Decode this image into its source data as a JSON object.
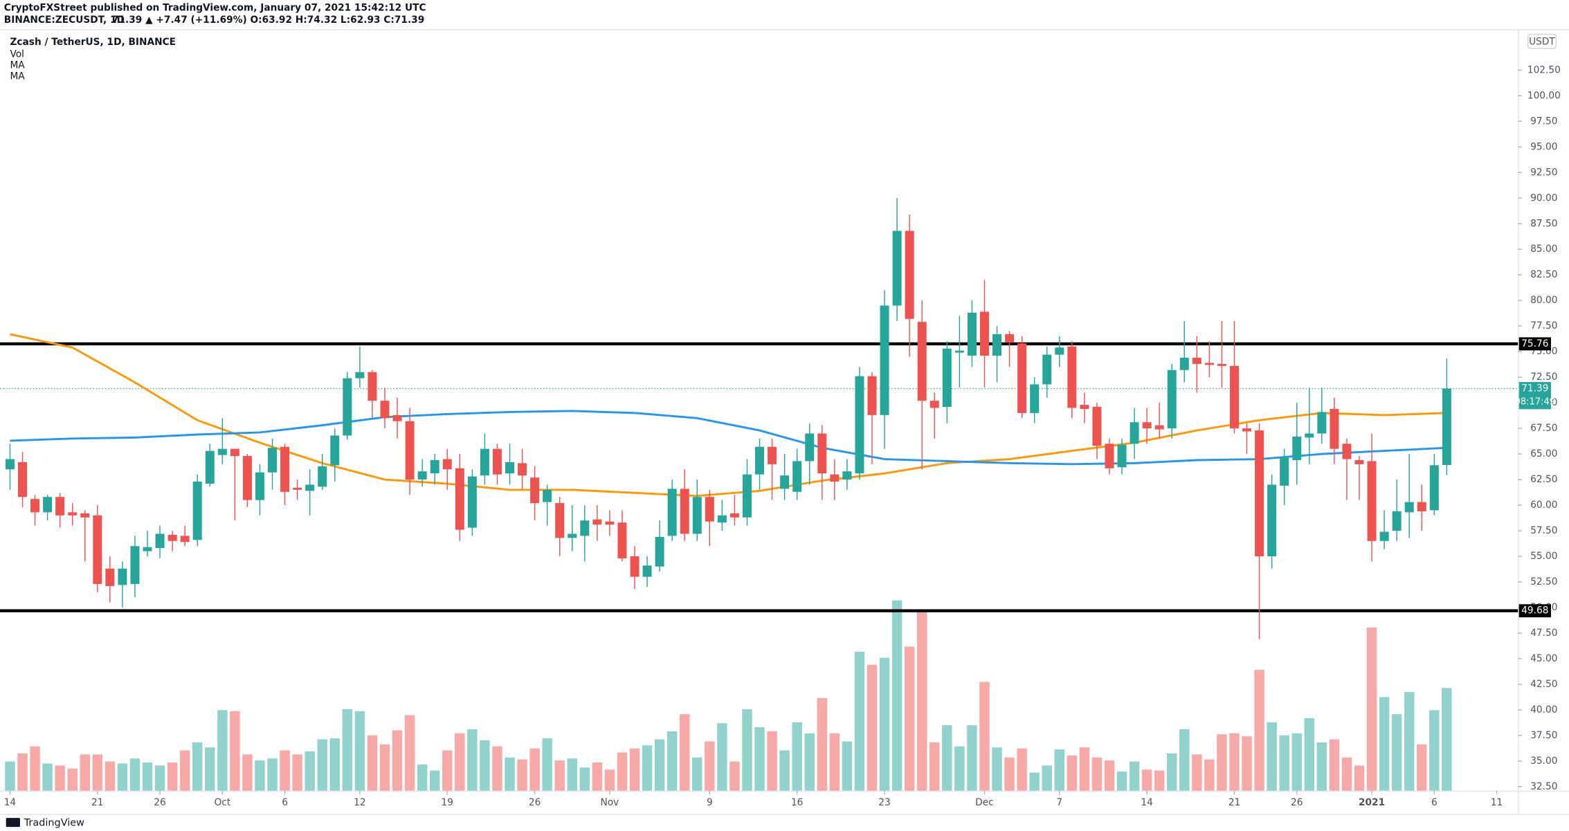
{
  "header": {
    "publisher": "CryptoFXStreet published on TradingView.com, January 07, 2021 15:42:12 UTC",
    "symbol": "BINANCE:ZECUSDT, 1D",
    "quote": "71.39 ▲ +7.47 (+11.69%) O:63.92 H:74.32 L:62.93 C:71.39"
  },
  "chart_data": {
    "type": "candlestick",
    "title": "Zcash / TetherUS, 1D, BINANCE",
    "y_unit": "USDT",
    "colors": {
      "up": "#26a69a",
      "down": "#ef5350"
    },
    "open": [
      63.5,
      64.2,
      60.6,
      59.3,
      60.8,
      59.3,
      59.2,
      59,
      53.8,
      52.2,
      52.3,
      55.5,
      55.8,
      57.1,
      57,
      56.6,
      62.1,
      64.9,
      65.5,
      64.8,
      60.5,
      63.2,
      65.7,
      61.7,
      61.4,
      61.8,
      63.9,
      66.8,
      72.4,
      73.0,
      70.2,
      68.8,
      68.2,
      62.5,
      63.1,
      64.5,
      63.6,
      57.8,
      62.9,
      65.5,
      63.1,
      64.1,
      62.7,
      60.3,
      60.2,
      56.8,
      57.0,
      58.6,
      58.4,
      58.3,
      55.0,
      53.0,
      54.0,
      57.0,
      61.6,
      57.2,
      60.8,
      58.3,
      59.2,
      58.8,
      63.0,
      65.7,
      61.6,
      61.3,
      64.3,
      67.0,
      63.0,
      62.5,
      63.1,
      72.6,
      68.8,
      79.5,
      86.8,
      77.9,
      70.2,
      69.6,
      74.9,
      74.6,
      78.9,
      74.6,
      76.7,
      75.8,
      69.0,
      71.8,
      74.7,
      75.5,
      69.8,
      69.6,
      66.0,
      63.7,
      66.0,
      68.1,
      67.8,
      67.5,
      73.2,
      74.4,
      73.9,
      73.8,
      73.6,
      67.5,
      67.3,
      55.0,
      61.9,
      64.4,
      66.6,
      67.0,
      69.4,
      66.0,
      64.4,
      64.3,
      56.5,
      57.5,
      59.3,
      60.3,
      59.5,
      63.92
    ],
    "high": [
      66,
      65.2,
      61,
      61,
      61.2,
      60.2,
      59.5,
      60,
      55,
      54.5,
      57,
      57.5,
      58,
      57.5,
      58,
      63,
      66,
      68.5,
      65.5,
      65,
      64,
      66.5,
      66,
      62.5,
      63.5,
      65,
      67.5,
      73,
      75.5,
      73.2,
      71.5,
      70.5,
      69.5,
      64.5,
      65,
      65.5,
      65,
      63.5,
      67,
      66,
      66,
      65.5,
      63.8,
      62,
      60.8,
      60,
      60,
      60,
      59.5,
      59.5,
      56,
      55,
      58.5,
      62.5,
      63.5,
      62.5,
      61.5,
      60.5,
      61,
      64.5,
      66.5,
      66.5,
      65,
      65.5,
      68,
      67.8,
      64.5,
      64.5,
      73.5,
      73,
      81,
      90,
      88.4,
      80,
      71,
      76,
      78.5,
      80,
      82,
      77.5,
      77,
      76.5,
      72.5,
      75.5,
      76.5,
      76,
      71,
      70,
      66.5,
      66.5,
      69.5,
      69.5,
      70,
      73.8,
      78,
      76.5,
      76,
      78,
      78,
      68,
      68,
      63,
      65.5,
      70,
      71.5,
      71.5,
      70.5,
      66.5,
      64.8,
      67,
      59.5,
      62.5,
      65,
      62,
      65,
      74.32
    ],
    "low": [
      61.5,
      59.8,
      58,
      58.5,
      57.8,
      58,
      54.5,
      51.5,
      50.5,
      50,
      51,
      55,
      54.8,
      55.5,
      56,
      56,
      61.8,
      64,
      58.5,
      59.8,
      59,
      61.5,
      60,
      60.5,
      59,
      61.5,
      62.3,
      66.4,
      71.5,
      68.5,
      67.5,
      66.5,
      61,
      61.8,
      62,
      61.5,
      56.5,
      57,
      62,
      62,
      62,
      61.5,
      58.5,
      58,
      55,
      55.5,
      54.5,
      56.5,
      57,
      54.5,
      51.8,
      52,
      53.5,
      56.5,
      56.5,
      56.5,
      56,
      57.5,
      58,
      58,
      61.5,
      60.5,
      60.5,
      60.5,
      62,
      60.5,
      60.5,
      61.5,
      62.5,
      64,
      65.5,
      78,
      74.5,
      63.5,
      66.5,
      68,
      71.5,
      73.5,
      71.5,
      72,
      73.5,
      68.5,
      68,
      70.5,
      73.5,
      68.5,
      68,
      64.5,
      63,
      63,
      64.5,
      66,
      66.5,
      66.5,
      72,
      71,
      72.5,
      71.5,
      67,
      65,
      46.9,
      53.8,
      60,
      62,
      64,
      66,
      64,
      60.5,
      60.5,
      54.5,
      55.7,
      56.5,
      56.8,
      57.5,
      59,
      62.93
    ],
    "close": [
      64.5,
      60.8,
      59.3,
      60.8,
      59.0,
      59.0,
      58.8,
      52.3,
      52.1,
      53.8,
      56.0,
      55.9,
      57.2,
      56.5,
      56.4,
      62.3,
      65.3,
      65.5,
      64.8,
      60.5,
      63.2,
      65.6,
      61.3,
      61.5,
      62.0,
      63.8,
      66.8,
      72.4,
      73.0,
      70.2,
      68.5,
      68.2,
      62.5,
      63.3,
      64.4,
      63.5,
      57.6,
      62.8,
      65.5,
      63.0,
      64.2,
      62.9,
      60.2,
      61.5,
      56.8,
      57.2,
      58.5,
      58.1,
      58.1,
      54.8,
      53.0,
      54.1,
      56.9,
      61.6,
      57.2,
      60.8,
      58.4,
      59.0,
      58.8,
      63.0,
      65.7,
      64.0,
      62.9,
      64.3,
      67.0,
      63.1,
      62.3,
      63.3,
      72.6,
      68.8,
      79.5,
      86.8,
      78.2,
      70.2,
      69.5,
      75.3,
      75.1,
      78.8,
      74.6,
      76.7,
      75.9,
      69.0,
      71.8,
      74.7,
      75.4,
      69.5,
      69.4,
      65.8,
      63.6,
      65.9,
      68.1,
      67.5,
      67.4,
      73.2,
      74.4,
      73.8,
      73.7,
      73.6,
      67.5,
      67.2,
      55.0,
      62.0,
      64.7,
      66.7,
      67.0,
      69.1,
      65.5,
      64.5,
      64.0,
      56.5,
      57.4,
      59.4,
      60.3,
      59.4,
      63.9,
      71.39
    ],
    "volume": {
      "name": "Vol",
      "vlim": [
        0,
        200
      ],
      "values": [
        29,
        37,
        44,
        27,
        25,
        22,
        36,
        36,
        29,
        27,
        32,
        28,
        25,
        28,
        40,
        48,
        43,
        80,
        79,
        36,
        30,
        32,
        40,
        36,
        39,
        51,
        52,
        81,
        79,
        55,
        46,
        60,
        75,
        26,
        20,
        40,
        57,
        61,
        50,
        44,
        33,
        31,
        42,
        52,
        30,
        32,
        23,
        28,
        21,
        38,
        42,
        45,
        51,
        59,
        76,
        33,
        49,
        67,
        29,
        81,
        63,
        59,
        40,
        68,
        57,
        92,
        57,
        49,
        138,
        125,
        132,
        189,
        143,
        178,
        48,
        65,
        44,
        65,
        108,
        43,
        33,
        42,
        18,
        25,
        41,
        35,
        43,
        33,
        30,
        19,
        29,
        21,
        20,
        37,
        61,
        36,
        31,
        56,
        57,
        54,
        120,
        68,
        55,
        57,
        72,
        48,
        51,
        33,
        25,
        162,
        93,
        76,
        98,
        46,
        80,
        102
      ]
    },
    "moving_averages": [
      {
        "name": "MA",
        "color": "#ff9800",
        "x": [
          0,
          5,
          10,
          15,
          20,
          25,
          30,
          35,
          40,
          45,
          50,
          55,
          60,
          65,
          70,
          75,
          80,
          85,
          90,
          95,
          100,
          105,
          110,
          115
        ],
        "values": [
          76.7,
          75.4,
          72.0,
          68.3,
          66.1,
          64.1,
          62.5,
          62.1,
          61.5,
          61.5,
          61.2,
          60.9,
          61.4,
          62.4,
          63.1,
          64.1,
          64.5,
          65.3,
          66.1,
          67.3,
          68.3,
          69.0,
          68.8,
          69.0
        ]
      },
      {
        "name": "MA",
        "color": "#2196f3",
        "x": [
          0,
          5,
          10,
          15,
          20,
          25,
          30,
          35,
          40,
          45,
          50,
          55,
          60,
          65,
          70,
          75,
          80,
          85,
          90,
          95,
          100,
          105,
          110,
          115
        ],
        "values": [
          66.3,
          66.5,
          66.6,
          66.9,
          67.1,
          67.8,
          68.6,
          68.9,
          69.1,
          69.2,
          69.0,
          68.5,
          67.3,
          65.6,
          64.5,
          64.3,
          64.1,
          64.0,
          64.1,
          64.4,
          64.5,
          65.0,
          65.3,
          65.6
        ]
      }
    ],
    "levels": [
      75.76,
      49.68
    ],
    "countdown": "08:17:49",
    "xlim": [
      -0.8,
      120.7
    ],
    "ylim": [
      32.1,
      106.4
    ],
    "xticks": [
      {
        "value": 0,
        "label": "14"
      },
      {
        "value": 7,
        "label": "21"
      },
      {
        "value": 12,
        "label": "26"
      },
      {
        "value": 17,
        "label": "Oct"
      },
      {
        "value": 22,
        "label": "6"
      },
      {
        "value": 28,
        "label": "12"
      },
      {
        "value": 35,
        "label": "19"
      },
      {
        "value": 42,
        "label": "26"
      },
      {
        "value": 48,
        "label": "Nov"
      },
      {
        "value": 56,
        "label": "9"
      },
      {
        "value": 63,
        "label": "16"
      },
      {
        "value": 70,
        "label": "23"
      },
      {
        "value": 78,
        "label": "Dec"
      },
      {
        "value": 84,
        "label": "7"
      },
      {
        "value": 91,
        "label": "14"
      },
      {
        "value": 98,
        "label": "21"
      },
      {
        "value": 103,
        "label": "26"
      },
      {
        "value": 109,
        "label": "2021"
      },
      {
        "value": 114,
        "label": "6"
      },
      {
        "value": 119,
        "label": "11"
      }
    ],
    "yticks": [
      {
        "value": 32.5,
        "label": "32.50"
      },
      {
        "value": 35,
        "label": "35.00"
      },
      {
        "value": 37.5,
        "label": "37.50"
      },
      {
        "value": 40,
        "label": "40.00"
      },
      {
        "value": 42.5,
        "label": "42.50"
      },
      {
        "value": 45,
        "label": "45.00"
      },
      {
        "value": 47.5,
        "label": "47.50"
      },
      {
        "value": 50,
        "label": "50.00"
      },
      {
        "value": 52.5,
        "label": "52.50"
      },
      {
        "value": 55,
        "label": "55.00"
      },
      {
        "value": 57.5,
        "label": "57.50"
      },
      {
        "value": 60,
        "label": "60.00"
      },
      {
        "value": 62.5,
        "label": "62.50"
      },
      {
        "value": 65,
        "label": "65.00"
      },
      {
        "value": 67.5,
        "label": "67.50"
      },
      {
        "value": 70,
        "label": "70.00"
      },
      {
        "value": 72.5,
        "label": "72.50"
      },
      {
        "value": 75,
        "label": "75.00"
      },
      {
        "value": 77.5,
        "label": "77.50"
      },
      {
        "value": 80,
        "label": "80.00"
      },
      {
        "value": 82.5,
        "label": "82.50"
      },
      {
        "value": 85,
        "label": "85.00"
      },
      {
        "value": 87.5,
        "label": "87.50"
      },
      {
        "value": 90,
        "label": "90.00"
      },
      {
        "value": 92.5,
        "label": "92.50"
      },
      {
        "value": 95,
        "label": "95.00"
      },
      {
        "value": 97.5,
        "label": "97.50"
      },
      {
        "value": 100,
        "label": "100.00"
      },
      {
        "value": 102.5,
        "label": "102.50"
      }
    ]
  },
  "footer": {
    "logo": "TradingView"
  }
}
